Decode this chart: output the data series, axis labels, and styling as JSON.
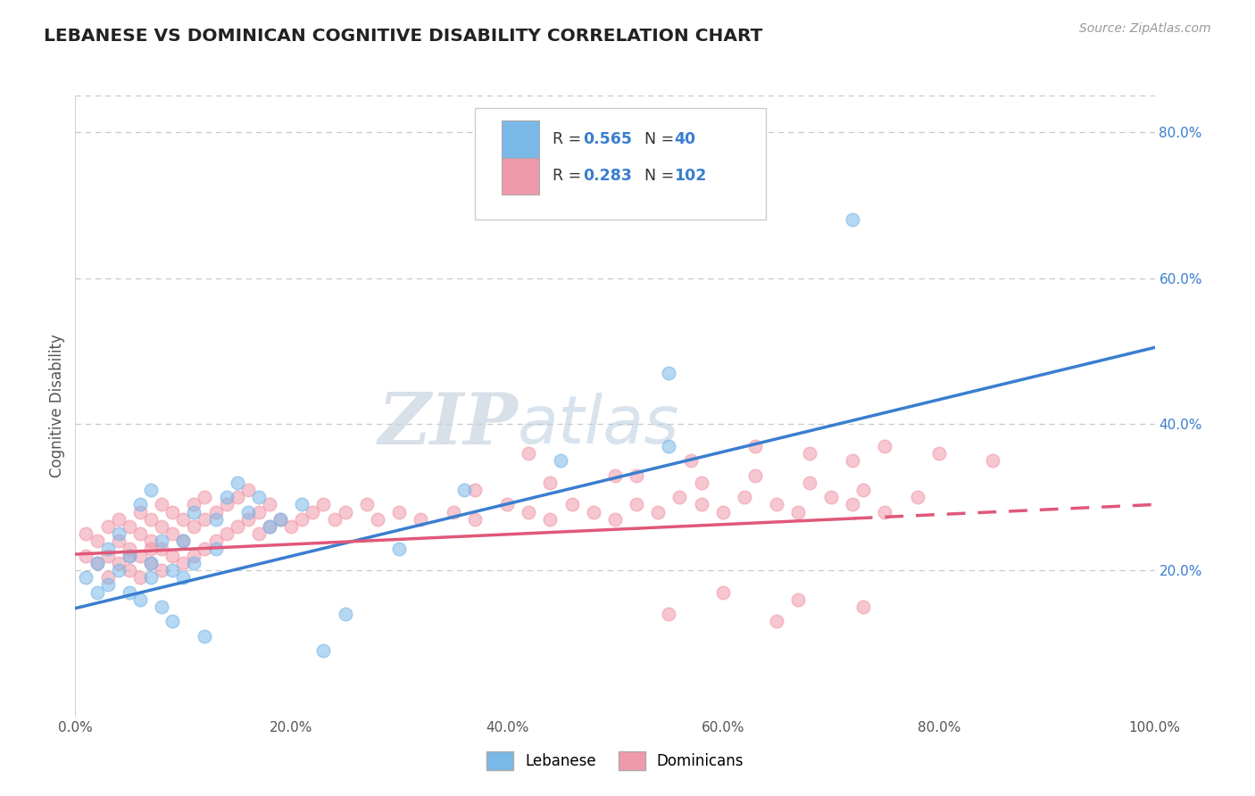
{
  "title": "LEBANESE VS DOMINICAN COGNITIVE DISABILITY CORRELATION CHART",
  "source": "Source: ZipAtlas.com",
  "ylabel": "Cognitive Disability",
  "blue_color": "#7ab8e8",
  "pink_color": "#f099aa",
  "blue_line_color": "#3a7ecf",
  "pink_line_color": "#e05878",
  "background_color": "#ffffff",
  "grid_color": "#c8c8c8",
  "xlim": [
    0.0,
    1.0
  ],
  "ylim": [
    0.0,
    0.85
  ],
  "xticks": [
    0.0,
    0.2,
    0.4,
    0.6,
    0.8,
    1.0
  ],
  "xtick_labels": [
    "0.0%",
    "20.0%",
    "40.0%",
    "60.0%",
    "80.0%",
    "100.0%"
  ],
  "yticks": [
    0.2,
    0.4,
    0.6,
    0.8
  ],
  "ytick_labels": [
    "20.0%",
    "40.0%",
    "60.0%",
    "80.0%"
  ],
  "blue_scatter_x": [
    0.01,
    0.02,
    0.02,
    0.03,
    0.03,
    0.04,
    0.04,
    0.05,
    0.05,
    0.06,
    0.06,
    0.07,
    0.07,
    0.07,
    0.08,
    0.08,
    0.09,
    0.09,
    0.1,
    0.1,
    0.11,
    0.11,
    0.12,
    0.13,
    0.13,
    0.14,
    0.15,
    0.16,
    0.17,
    0.18,
    0.19,
    0.21,
    0.23,
    0.25,
    0.3,
    0.36,
    0.45,
    0.55,
    0.72,
    0.55
  ],
  "blue_scatter_y": [
    0.19,
    0.21,
    0.17,
    0.23,
    0.18,
    0.2,
    0.25,
    0.17,
    0.22,
    0.16,
    0.29,
    0.19,
    0.21,
    0.31,
    0.15,
    0.24,
    0.2,
    0.13,
    0.19,
    0.24,
    0.21,
    0.28,
    0.11,
    0.23,
    0.27,
    0.3,
    0.32,
    0.28,
    0.3,
    0.26,
    0.27,
    0.29,
    0.09,
    0.14,
    0.23,
    0.31,
    0.35,
    0.37,
    0.68,
    0.47
  ],
  "pink_scatter_x": [
    0.01,
    0.01,
    0.02,
    0.02,
    0.03,
    0.03,
    0.03,
    0.04,
    0.04,
    0.04,
    0.05,
    0.05,
    0.05,
    0.05,
    0.06,
    0.06,
    0.06,
    0.06,
    0.07,
    0.07,
    0.07,
    0.07,
    0.08,
    0.08,
    0.08,
    0.08,
    0.09,
    0.09,
    0.09,
    0.1,
    0.1,
    0.1,
    0.11,
    0.11,
    0.11,
    0.12,
    0.12,
    0.12,
    0.13,
    0.13,
    0.14,
    0.14,
    0.15,
    0.15,
    0.16,
    0.16,
    0.17,
    0.17,
    0.18,
    0.18,
    0.19,
    0.2,
    0.21,
    0.22,
    0.23,
    0.24,
    0.25,
    0.27,
    0.28,
    0.3,
    0.32,
    0.35,
    0.37,
    0.4,
    0.42,
    0.44,
    0.46,
    0.48,
    0.5,
    0.52,
    0.54,
    0.56,
    0.58,
    0.6,
    0.62,
    0.65,
    0.67,
    0.7,
    0.72,
    0.75,
    0.78,
    0.42,
    0.5,
    0.57,
    0.63,
    0.68,
    0.72,
    0.75,
    0.8,
    0.85,
    0.37,
    0.44,
    0.52,
    0.58,
    0.63,
    0.68,
    0.73,
    0.55,
    0.6,
    0.67,
    0.73,
    0.65
  ],
  "pink_scatter_y": [
    0.22,
    0.25,
    0.21,
    0.24,
    0.22,
    0.26,
    0.19,
    0.21,
    0.24,
    0.27,
    0.2,
    0.23,
    0.26,
    0.22,
    0.19,
    0.22,
    0.25,
    0.28,
    0.21,
    0.24,
    0.27,
    0.23,
    0.2,
    0.23,
    0.26,
    0.29,
    0.22,
    0.25,
    0.28,
    0.21,
    0.24,
    0.27,
    0.22,
    0.26,
    0.29,
    0.23,
    0.27,
    0.3,
    0.24,
    0.28,
    0.25,
    0.29,
    0.26,
    0.3,
    0.27,
    0.31,
    0.25,
    0.28,
    0.26,
    0.29,
    0.27,
    0.26,
    0.27,
    0.28,
    0.29,
    0.27,
    0.28,
    0.29,
    0.27,
    0.28,
    0.27,
    0.28,
    0.27,
    0.29,
    0.28,
    0.27,
    0.29,
    0.28,
    0.27,
    0.29,
    0.28,
    0.3,
    0.29,
    0.28,
    0.3,
    0.29,
    0.28,
    0.3,
    0.29,
    0.28,
    0.3,
    0.36,
    0.33,
    0.35,
    0.37,
    0.36,
    0.35,
    0.37,
    0.36,
    0.35,
    0.31,
    0.32,
    0.33,
    0.32,
    0.33,
    0.32,
    0.31,
    0.14,
    0.17,
    0.16,
    0.15,
    0.13
  ],
  "blue_line_x": [
    0.0,
    1.0
  ],
  "blue_line_y": [
    0.148,
    0.505
  ],
  "pink_line_y": [
    0.222,
    0.29
  ],
  "pink_line_solid_end": 0.72,
  "watermark_zip": "ZIP",
  "watermark_atlas": "atlas"
}
